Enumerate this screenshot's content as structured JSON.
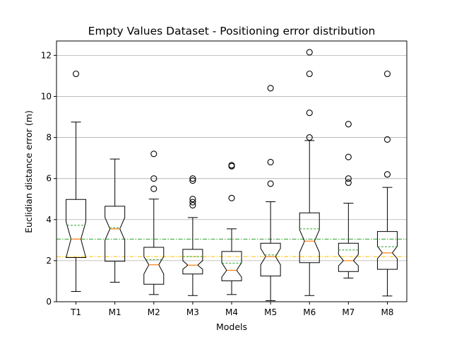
{
  "chart_data": {
    "type": "box",
    "title": "Empty Values Dataset - Positioning error distribution",
    "xlabel": "Models",
    "ylabel": "Euclidian distance error (m)",
    "categories": [
      "T1",
      "M1",
      "M2",
      "M3",
      "M4",
      "M5",
      "M6",
      "M7",
      "M8"
    ],
    "ylim": [
      0,
      12.7
    ],
    "yticks": [
      0,
      2,
      4,
      6,
      8,
      10,
      12
    ],
    "grid": "y",
    "notched": true,
    "colors": {
      "box": "#000000",
      "median": "#ff7f0e",
      "mean": "#2ca02c",
      "ref_line_upper": "#2ca02c",
      "ref_line_lower": "#ffbf00",
      "grid": "#b0b0b0"
    },
    "reference_lines": [
      {
        "y": 3.05,
        "style": "dash-dot",
        "color": "#2ca02c"
      },
      {
        "y": 2.2,
        "style": "dash-dot",
        "color": "#ffbf00"
      }
    ],
    "boxes": [
      {
        "label": "T1",
        "whislo": 0.5,
        "q1": 2.15,
        "med": 3.05,
        "q3": 4.98,
        "whishi": 8.75,
        "mean": 3.72,
        "notch_lo": 2.15,
        "notch_hi": 3.9,
        "fliers": [
          11.1
        ]
      },
      {
        "label": "M1",
        "whislo": 0.95,
        "q1": 1.97,
        "med": 3.55,
        "q3": 4.65,
        "whishi": 6.95,
        "mean": 3.6,
        "notch_lo": 3.0,
        "notch_hi": 4.1,
        "fliers": []
      },
      {
        "label": "M2",
        "whislo": 0.35,
        "q1": 0.85,
        "med": 1.8,
        "q3": 2.65,
        "whishi": 5.0,
        "mean": 2.05,
        "notch_lo": 1.35,
        "notch_hi": 2.2,
        "fliers": [
          5.5,
          6.0,
          7.2
        ]
      },
      {
        "label": "M3",
        "whislo": 0.3,
        "q1": 1.35,
        "med": 1.78,
        "q3": 2.55,
        "whishi": 4.1,
        "mean": 2.2,
        "notch_lo": 1.58,
        "notch_hi": 2.0,
        "fliers": [
          4.7,
          4.85,
          5.0,
          5.9,
          6.0
        ]
      },
      {
        "label": "M4",
        "whislo": 0.35,
        "q1": 1.02,
        "med": 1.53,
        "q3": 2.45,
        "whishi": 3.55,
        "mean": 1.88,
        "notch_lo": 1.2,
        "notch_hi": 1.9,
        "fliers": [
          5.05,
          6.6,
          6.65
        ]
      },
      {
        "label": "M5",
        "whislo": 0.05,
        "q1": 1.25,
        "med": 2.2,
        "q3": 2.85,
        "whishi": 4.87,
        "mean": 2.28,
        "notch_lo": 1.8,
        "notch_hi": 2.6,
        "fliers": [
          5.75,
          6.8,
          10.4
        ]
      },
      {
        "label": "M6",
        "whislo": 0.3,
        "q1": 1.9,
        "med": 2.95,
        "q3": 4.33,
        "whishi": 7.85,
        "mean": 3.55,
        "notch_lo": 2.4,
        "notch_hi": 3.5,
        "fliers": [
          8.0,
          9.2,
          11.1,
          12.15
        ]
      },
      {
        "label": "M7",
        "whislo": 1.15,
        "q1": 1.47,
        "med": 2.0,
        "q3": 2.85,
        "whishi": 4.8,
        "mean": 2.52,
        "notch_lo": 1.75,
        "notch_hi": 2.3,
        "fliers": [
          5.8,
          6.0,
          7.05,
          8.65
        ]
      },
      {
        "label": "M8",
        "whislo": 0.28,
        "q1": 1.58,
        "med": 2.38,
        "q3": 3.42,
        "whishi": 5.57,
        "mean": 2.68,
        "notch_lo": 2.1,
        "notch_hi": 2.7,
        "fliers": [
          6.2,
          7.9,
          11.1
        ]
      }
    ]
  }
}
